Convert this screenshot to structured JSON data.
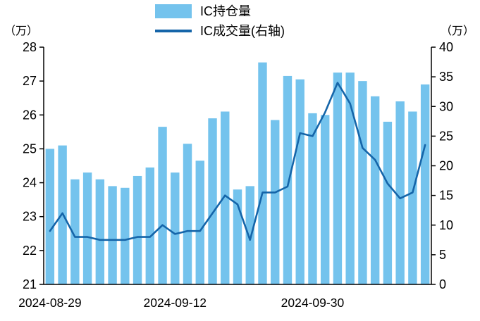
{
  "chart_data": {
    "type": "combo",
    "title": "",
    "legend_position": "top",
    "left_axis": {
      "unit": "（万）",
      "min": 21,
      "max": 28,
      "step": 1
    },
    "right_axis": {
      "unit": "（万）",
      "min": 0,
      "max": 40,
      "step": 5
    },
    "x_tick_labels": [
      {
        "index": 0,
        "label": "2024-08-29"
      },
      {
        "index": 10,
        "label": "2024-09-12"
      },
      {
        "index": 21,
        "label": "2024-09-30"
      }
    ],
    "series": [
      {
        "name": "IC持仓量",
        "type": "bar",
        "axis": "left",
        "color": "#74C3ED",
        "values": [
          25.0,
          25.1,
          24.1,
          24.3,
          24.1,
          23.9,
          23.85,
          24.2,
          24.45,
          25.65,
          24.3,
          25.15,
          24.65,
          25.9,
          26.1,
          23.8,
          23.9,
          27.55,
          25.85,
          27.15,
          27.05,
          26.05,
          26.0,
          27.25,
          27.25,
          27.0,
          26.55,
          25.8,
          26.4,
          26.1,
          26.9
        ]
      },
      {
        "name": "IC成交量(右轴)",
        "type": "line",
        "axis": "right",
        "color": "#1565A9",
        "values": [
          9,
          12,
          8,
          8,
          7.5,
          7.5,
          7.5,
          8,
          8,
          10,
          8.5,
          9,
          9,
          12,
          15,
          13.5,
          7.5,
          15.5,
          15.5,
          16.5,
          25.5,
          25,
          29,
          34,
          30.5,
          23,
          21,
          17,
          14.5,
          15.5,
          23.5
        ]
      }
    ]
  }
}
